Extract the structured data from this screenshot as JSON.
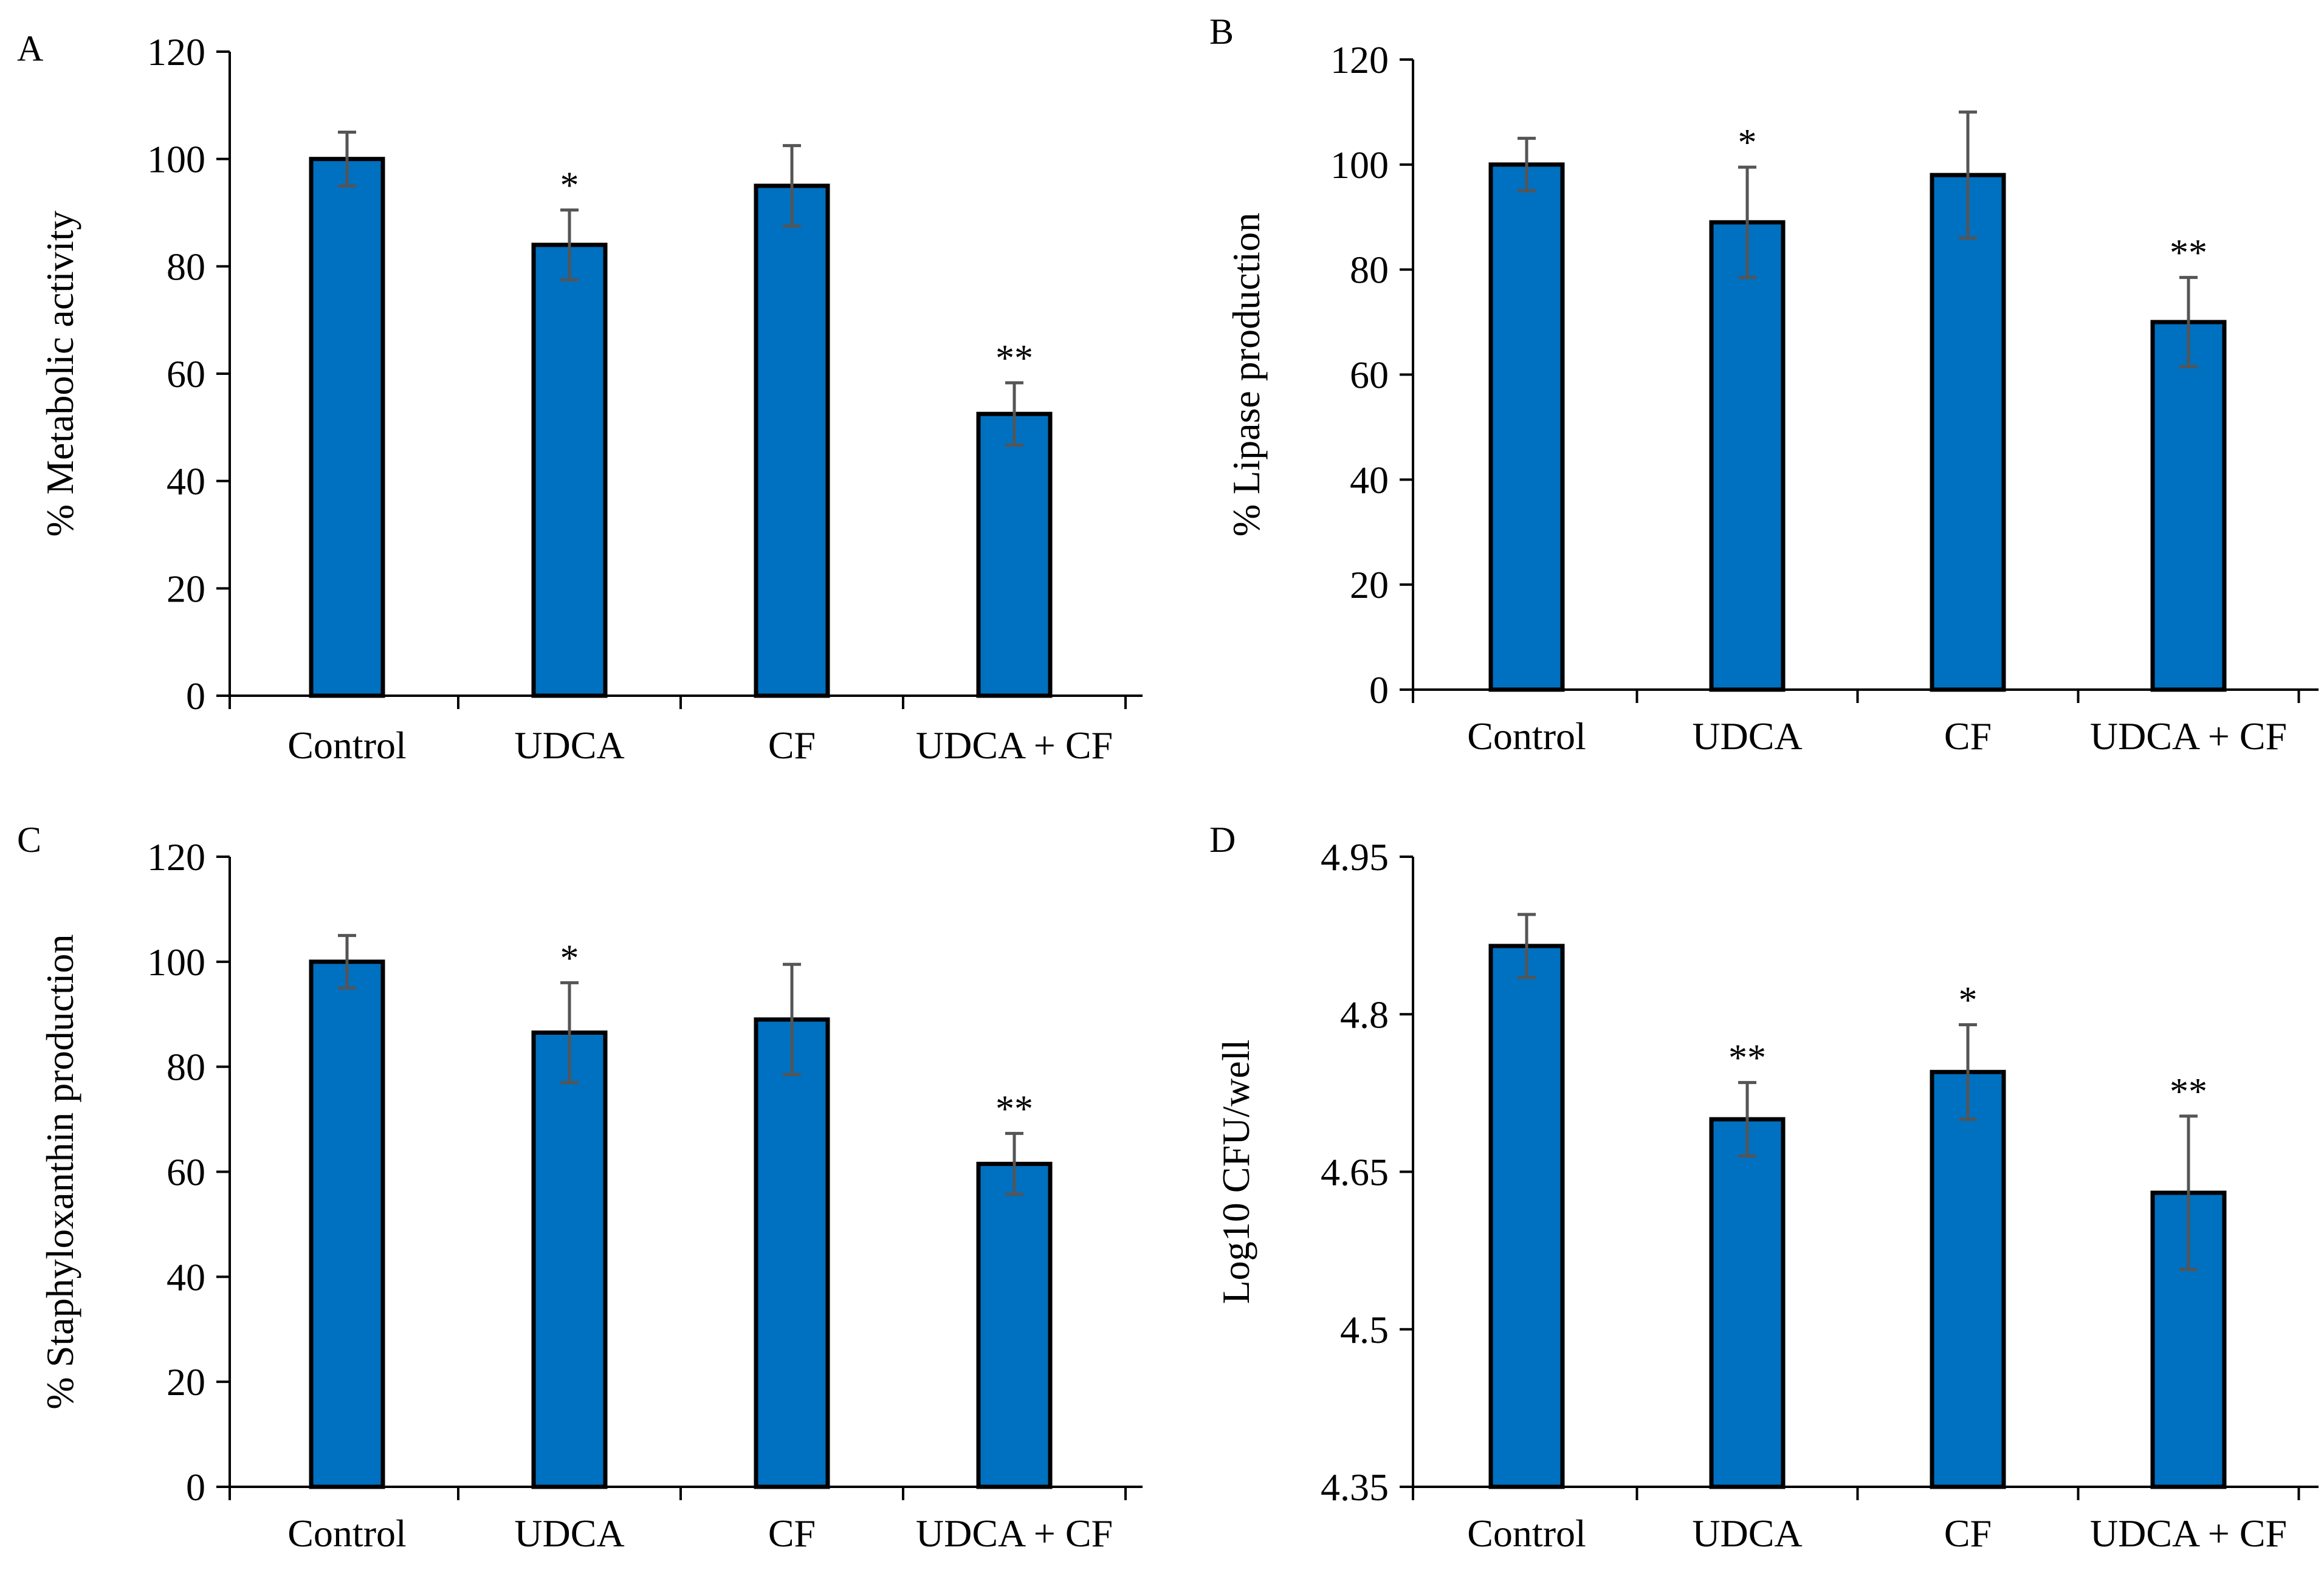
{
  "figure": {
    "colors": {
      "bar_fill": "#0070C0",
      "bar_stroke": "#000000",
      "axis": "#000000",
      "error_bar": "#555555"
    }
  },
  "chart_data": [
    {
      "id": "A",
      "panel_label": "A",
      "type": "bar",
      "ylabel": "% Metabolic activity",
      "xlabel": "",
      "categories": [
        "Control",
        "UDCA",
        "CF",
        "UDCA + CF"
      ],
      "values": [
        100,
        84,
        95,
        52.5
      ],
      "errors": [
        5,
        6.5,
        7.5,
        5.8
      ],
      "significance": [
        "",
        "*",
        "",
        "**"
      ],
      "ylim": [
        0,
        120
      ],
      "yticks": [
        0,
        20,
        40,
        60,
        80,
        100,
        120
      ],
      "ytick_labels": [
        "0",
        "20",
        "40",
        "60",
        "80",
        "100",
        "120"
      ]
    },
    {
      "id": "B",
      "panel_label": "B",
      "type": "bar",
      "ylabel": "% Lipase production",
      "xlabel": "",
      "categories": [
        "Control",
        "UDCA",
        "CF",
        "UDCA + CF"
      ],
      "values": [
        100,
        89,
        98,
        70
      ],
      "errors": [
        5,
        10.5,
        12,
        8.5
      ],
      "significance": [
        "",
        "*",
        "",
        "**"
      ],
      "ylim": [
        0,
        120
      ],
      "yticks": [
        0,
        20,
        40,
        60,
        80,
        100,
        120
      ],
      "ytick_labels": [
        "0",
        "20",
        "40",
        "60",
        "80",
        "100",
        "120"
      ]
    },
    {
      "id": "C",
      "panel_label": "C",
      "type": "bar",
      "ylabel": "% Staphyloxanthin production",
      "xlabel": "",
      "categories": [
        "Control",
        "UDCA",
        "CF",
        "UDCA + CF"
      ],
      "values": [
        100,
        86.5,
        89,
        61.5
      ],
      "errors": [
        5,
        9.5,
        10.5,
        5.8
      ],
      "significance": [
        "",
        "*",
        "",
        "**"
      ],
      "ylim": [
        0,
        120
      ],
      "yticks": [
        0,
        20,
        40,
        60,
        80,
        100,
        120
      ],
      "ytick_labels": [
        "0",
        "20",
        "40",
        "60",
        "80",
        "100",
        "120"
      ]
    },
    {
      "id": "D",
      "panel_label": "D",
      "type": "bar",
      "ylabel": "Log10 CFU/well",
      "xlabel": "",
      "categories": [
        "Control",
        "UDCA",
        "CF",
        "UDCA + CF"
      ],
      "values": [
        4.865,
        4.7,
        4.745,
        4.63
      ],
      "errors": [
        0.03,
        0.035,
        0.045,
        0.073
      ],
      "significance": [
        "",
        "**",
        "*",
        "**"
      ],
      "ylim": [
        4.35,
        4.95
      ],
      "yticks": [
        4.35,
        4.5,
        4.65,
        4.8,
        4.95
      ],
      "ytick_labels": [
        "4.35",
        "4.5",
        "4.65",
        "4.8",
        "4.95"
      ]
    }
  ]
}
